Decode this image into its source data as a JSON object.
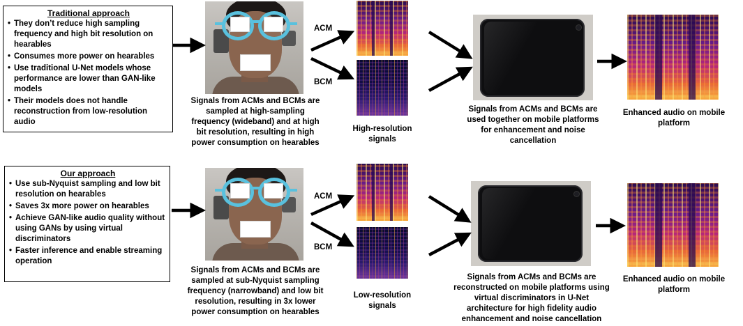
{
  "top_row": {
    "box": {
      "title": "Traditional approach",
      "bullets": [
        "They don’t reduce high sampling frequency and high bit resolution on hearables",
        "Consumes more power on hearables",
        "Use traditional U-Net models whose performance are lower than GAN-like models",
        "Their models does not handle reconstruction from low-resolution audio"
      ]
    },
    "capture_caption": "Signals from ACMs and BCMs are sampled at high-sampling frequency (wideband) and at high bit resolution, resulting in high power consumption on hearables",
    "acm_label": "ACM",
    "bcm_label": "BCM",
    "signals_caption": "High-resolution signals",
    "mobile_caption": "Signals from ACMs and BCMs are used together on mobile platforms for enhancement and noise cancellation",
    "output_caption": "Enhanced audio on mobile platform"
  },
  "bottom_row": {
    "box": {
      "title": "Our approach",
      "bullets": [
        "Use sub-Nyquist sampling and low bit resolution on hearables",
        "Saves 3x more power on hearables",
        "Achieve GAN-like audio quality without using GANs by using virtual discriminators",
        "Faster inference and enable streaming operation"
      ]
    },
    "capture_caption": "Signals from ACMs and BCMs are sampled at sub-Nyquist sampling frequency (narrowband) and low bit resolution, resulting in 3x lower power consumption on hearables",
    "acm_label": "ACM",
    "bcm_label": "BCM",
    "signals_caption": "Low-resolution signals",
    "mobile_caption": "Signals from ACMs and BCMs are reconstructed on mobile platforms using virtual discriminators in U-Net architecture for high fidelity audio enhancement and noise cancellation",
    "output_caption": "Enhanced audio on mobile platform"
  },
  "colors": {
    "glasses_frame": "#59c1de",
    "spectrogram_hot": "#f9c74f",
    "spectrogram_mid": "#b5257c",
    "spectrogram_low": "#2a0b4e",
    "arrow": "#000000"
  },
  "icons": [
    "face-photo",
    "spectrogram",
    "smartphone",
    "arrow"
  ]
}
